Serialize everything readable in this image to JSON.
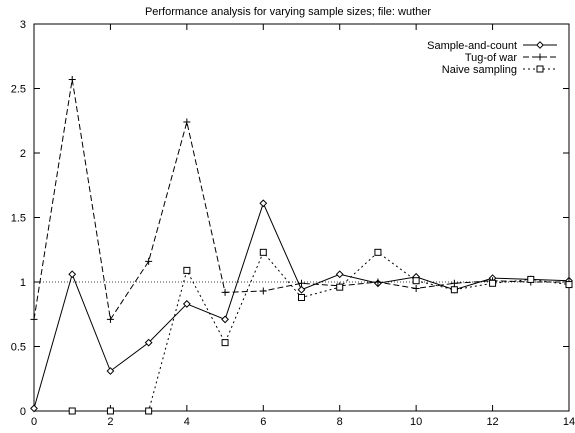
{
  "chart_data": {
    "type": "line",
    "title": "Performance analysis for varying sample sizes; file: wuther",
    "xlabel": "",
    "ylabel": "",
    "xlim": [
      0,
      14
    ],
    "ylim": [
      0,
      3
    ],
    "x_ticks": [
      0,
      2,
      4,
      6,
      8,
      10,
      12,
      14
    ],
    "y_ticks": [
      0,
      0.5,
      1,
      1.5,
      2,
      2.5,
      3
    ],
    "x_tick_labels": [
      "0",
      "2",
      "4",
      "6",
      "8",
      "10",
      "12",
      "14"
    ],
    "y_tick_labels": [
      "0",
      "0.5",
      "1",
      "1.5",
      "2",
      "2.5",
      "3"
    ],
    "grid": false,
    "legend_position": "top-right",
    "reference_line": {
      "y": 1
    },
    "series": [
      {
        "name": "Sample-and-count",
        "marker": "diamond",
        "line": "solid",
        "x": [
          0,
          1,
          2,
          3,
          4,
          5,
          6,
          7,
          8,
          9,
          10,
          11,
          12,
          13,
          14
        ],
        "y": [
          0.02,
          1.06,
          0.31,
          0.53,
          0.83,
          0.71,
          1.61,
          0.94,
          1.06,
          0.99,
          1.04,
          0.94,
          1.03,
          1.02,
          1.01
        ]
      },
      {
        "name": "Tug-of war",
        "marker": "plus",
        "line": "dashed",
        "x": [
          0,
          1,
          2,
          3,
          4,
          5,
          6,
          7,
          8,
          9,
          10,
          11,
          12,
          13,
          14
        ],
        "y": [
          0.71,
          2.57,
          0.71,
          1.16,
          2.24,
          0.92,
          0.93,
          0.99,
          0.97,
          1.0,
          0.95,
          0.99,
          1.01,
          1.0,
          1.0
        ]
      },
      {
        "name": "Naive sampling",
        "marker": "square",
        "line": "dotted",
        "x": [
          1,
          2,
          3,
          4,
          5,
          6,
          7,
          8,
          9,
          10,
          11,
          12,
          13,
          14
        ],
        "y": [
          0.0,
          0.0,
          0.0,
          1.09,
          0.53,
          1.23,
          0.88,
          0.96,
          1.23,
          1.01,
          0.94,
          0.99,
          1.02,
          0.98
        ]
      }
    ]
  }
}
